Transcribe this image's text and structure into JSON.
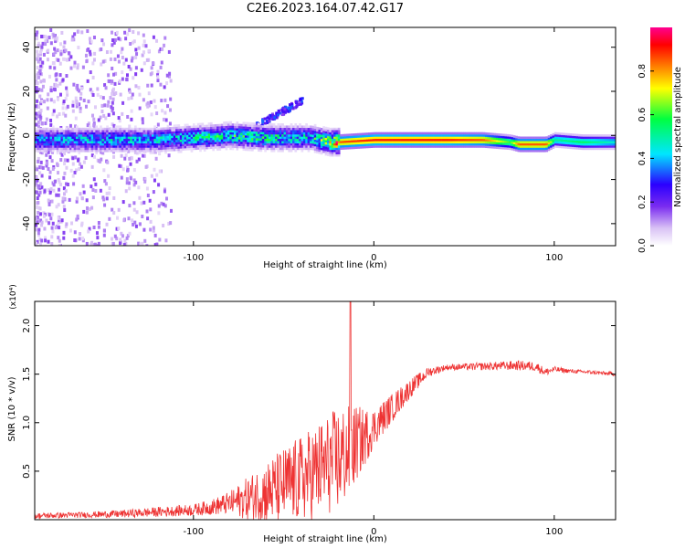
{
  "title": "C2E6.2023.164.07.42.G17",
  "chart_data": [
    {
      "type": "heatmap",
      "xlabel": "Height of straight line (km)",
      "ylabel": "Frequency (Hz)",
      "xlim": [
        -188,
        134
      ],
      "ylim": [
        -50,
        49
      ],
      "xticks": [
        -100,
        0,
        100
      ],
      "xtick_labels": [
        "-100",
        "0",
        "100"
      ],
      "yticks": [
        -40,
        -20,
        0,
        20,
        40
      ],
      "ytick_labels": [
        "-40",
        "-20",
        "0",
        "20",
        "40"
      ],
      "colorbar": {
        "label": "Normalized spectral amplitude",
        "range": [
          0,
          1
        ],
        "ticks": [
          0,
          0.2,
          0.4,
          0.6,
          0.8
        ],
        "tick_labels": [
          "0.0",
          "0.2",
          "0.4",
          "0.6",
          "0.8"
        ],
        "colors": [
          "#ffffff",
          "#d9c2f5",
          "#7a2cf0",
          "#2b00ff",
          "#00e6ff",
          "#00ff40",
          "#ffff00",
          "#ff8000",
          "#ff0000",
          "#ff0090"
        ]
      },
      "ridge": {
        "description_points_x": [
          -188,
          -150,
          -120,
          -100,
          -80,
          -60,
          -45,
          -35,
          -25,
          -20,
          0,
          40,
          60,
          75,
          80,
          95,
          100,
          115,
          134
        ],
        "center_freq": [
          -2,
          -2,
          -2,
          -1,
          0,
          -1,
          -1,
          -1,
          -3,
          -3,
          -2,
          -2,
          -2,
          -3,
          -4,
          -4,
          -2,
          -3,
          -3
        ],
        "amplitude": [
          0.35,
          0.4,
          0.4,
          0.45,
          0.5,
          0.5,
          0.45,
          0.45,
          0.65,
          0.85,
          0.9,
          0.9,
          0.85,
          0.6,
          0.85,
          0.85,
          0.5,
          0.55,
          0.45
        ]
      },
      "grid": false
    },
    {
      "type": "line",
      "xlabel": "Height of straight line (km)",
      "ylabel": "SNR (10 * v/v)",
      "yscale_label": "(x10⁴)",
      "xlim": [
        -188,
        134
      ],
      "ylim": [
        0,
        2.25
      ],
      "xticks": [
        -100,
        0,
        100
      ],
      "xtick_labels": [
        "-100",
        "0",
        "100"
      ],
      "yticks": [
        0.5,
        1.0,
        1.5,
        2.0
      ],
      "ytick_labels": [
        "0.5",
        "1.0",
        "1.5",
        "2.0"
      ],
      "series_color": "#ee3333",
      "envelope_x": [
        -188,
        -160,
        -140,
        -120,
        -100,
        -90,
        -80,
        -70,
        -60,
        -50,
        -40,
        -30,
        -20,
        -15,
        -12,
        -10,
        -5,
        0,
        10,
        20,
        30,
        40,
        60,
        80,
        90,
        95,
        100,
        110,
        120,
        134
      ],
      "envelope_mean": [
        0.04,
        0.05,
        0.06,
        0.08,
        0.1,
        0.13,
        0.17,
        0.22,
        0.28,
        0.35,
        0.42,
        0.52,
        0.62,
        0.68,
        0.72,
        0.78,
        0.85,
        0.95,
        1.15,
        1.35,
        1.52,
        1.57,
        1.58,
        1.59,
        1.58,
        1.52,
        1.55,
        1.53,
        1.52,
        1.5
      ],
      "envelope_noise": [
        0.03,
        0.03,
        0.04,
        0.05,
        0.06,
        0.08,
        0.12,
        0.22,
        0.32,
        0.4,
        0.45,
        0.5,
        0.55,
        0.5,
        0.45,
        0.4,
        0.3,
        0.2,
        0.15,
        0.1,
        0.05,
        0.03,
        0.04,
        0.05,
        0.05,
        0.04,
        0.03,
        0.02,
        0.02,
        0.02
      ],
      "peak_x": -13,
      "peak_y": 2.25,
      "grid": false
    }
  ]
}
